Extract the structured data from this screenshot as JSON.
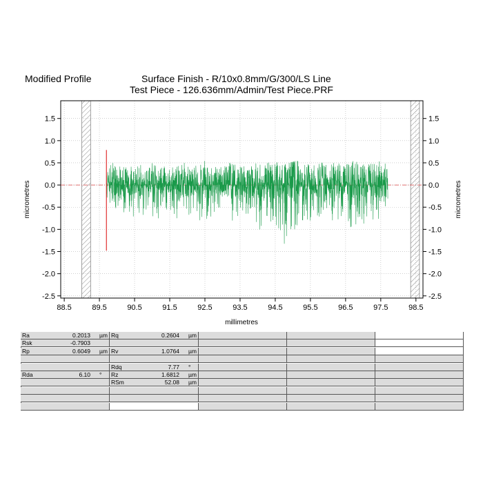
{
  "header": {
    "left_title": "Modified Profile",
    "title_line1": "Surface Finish - R/10x0.8mm/G/300/LS Line",
    "title_line2": "Test Piece - 126.636mm/Admin/Test Piece.PRF"
  },
  "colors": {
    "profile": "#1a9a4a",
    "reference_line": "#d94040",
    "start_marker": "#e03030",
    "grid": "#b0b0b0",
    "table_fill": "#dcdcdc"
  },
  "chart_data": {
    "type": "line",
    "title": "Surface Finish - R/10x0.8mm/G/300/LS Line",
    "subtitle": "Test Piece - 126.636mm/Admin/Test Piece.PRF",
    "xlabel": "millimetres",
    "ylabel": "micrometres",
    "ylabel_right": "micrometres",
    "xlim": [
      88.4,
      98.7
    ],
    "ylim": [
      -2.55,
      1.9
    ],
    "x_ticks": [
      88.5,
      89.5,
      90.5,
      91.5,
      92.5,
      93.5,
      94.5,
      95.5,
      96.5,
      97.5,
      98.5
    ],
    "x_tick_labels": [
      "88.5",
      "89.5",
      "90.5",
      "91.5",
      "92.5",
      "93.5",
      "94.5",
      "95.5",
      "96.5",
      "97.5",
      "98.5"
    ],
    "y_ticks": [
      1.5,
      1.0,
      0.5,
      0.0,
      -0.5,
      -1.0,
      -1.5,
      -2.0,
      -2.5
    ],
    "y_tick_labels": [
      "1.5",
      "1.0",
      "0.5",
      "0.0",
      "-0.5",
      "-1.0",
      "-1.5",
      "-2.0",
      "-2.5"
    ],
    "grid": true,
    "reference_line_y": 0.0,
    "excluded_regions": [
      [
        89.0,
        89.25
      ],
      [
        98.35,
        98.6
      ]
    ],
    "start_marker": {
      "x": 89.7,
      "y_min": -1.48,
      "y_max": 0.79
    },
    "series": [
      {
        "x": [
          89.7,
          89.9,
          90.1,
          90.3,
          90.5,
          90.7,
          90.9,
          91.1,
          91.3,
          91.5,
          91.7,
          91.9,
          92.1,
          92.3,
          92.5,
          92.7,
          92.9,
          93.1,
          93.3,
          93.5,
          93.7,
          93.9,
          94.1,
          94.3,
          94.5,
          94.7,
          94.9,
          95.1,
          95.3,
          95.5,
          95.7,
          95.9,
          96.1,
          96.3,
          96.5,
          96.7,
          96.9,
          97.1,
          97.3,
          97.5,
          97.7
        ],
        "y_max": [
          0.4,
          0.55,
          0.5,
          0.45,
          0.4,
          0.5,
          0.45,
          0.55,
          0.5,
          0.4,
          0.45,
          0.55,
          0.5,
          0.45,
          0.6,
          0.5,
          0.45,
          0.55,
          0.5,
          0.45,
          0.55,
          0.5,
          0.45,
          0.5,
          0.55,
          0.45,
          0.5,
          0.55,
          0.5,
          0.45,
          0.5,
          0.55,
          0.5,
          0.5,
          0.45,
          0.55,
          0.5,
          0.45,
          0.5,
          0.55,
          0.45
        ],
        "y_min": [
          -0.35,
          -0.7,
          -0.6,
          -0.65,
          -0.75,
          -0.8,
          -0.6,
          -0.85,
          -0.7,
          -0.65,
          -0.8,
          -0.75,
          -0.7,
          -0.85,
          -0.8,
          -0.75,
          -0.7,
          -0.8,
          -0.85,
          -0.75,
          -0.7,
          -0.8,
          -1.15,
          -0.85,
          -0.8,
          -1.4,
          -1.5,
          -1.25,
          -0.9,
          -0.85,
          -0.8,
          -0.75,
          -0.8,
          -0.85,
          -0.75,
          -1.3,
          -0.85,
          -0.9,
          -0.8,
          -0.75,
          -0.85
        ]
      }
    ]
  },
  "parameters": {
    "rows": [
      {
        "c1": {
          "label": "Ra",
          "value": "0.2013",
          "unit": "µm"
        },
        "c2": {
          "label": "Rq",
          "value": "0.2604",
          "unit": "µm"
        }
      },
      {
        "c1": {
          "label": "Rsk",
          "value": "-0.7903",
          "unit": ""
        },
        "c2": {
          "label": "",
          "value": "",
          "unit": ""
        }
      },
      {
        "c1": {
          "label": "Rp",
          "value": "0.6049",
          "unit": "µm"
        },
        "c2": {
          "label": "Rv",
          "value": "1.0764",
          "unit": "µm"
        }
      },
      {
        "c1": {
          "label": "",
          "value": "",
          "unit": ""
        },
        "c2": {
          "label": "",
          "value": "",
          "unit": ""
        }
      },
      {
        "c1": {
          "label": "",
          "value": "",
          "unit": ""
        },
        "c2": {
          "label": "Rdq",
          "value": "7.77",
          "unit": "°"
        }
      },
      {
        "c1": {
          "label": "Rda",
          "value": "6.10",
          "unit": "°"
        },
        "c2": {
          "label": "Rz",
          "value": "1.6812",
          "unit": "µm"
        }
      },
      {
        "c1": {
          "label": "",
          "value": "",
          "unit": ""
        },
        "c2": {
          "label": "RSm",
          "value": "52.08",
          "unit": "µm"
        }
      },
      {
        "c1": {
          "label": "",
          "value": "",
          "unit": ""
        },
        "c2": {
          "label": "",
          "value": "",
          "unit": ""
        }
      },
      {
        "c1": {
          "label": "",
          "value": "",
          "unit": ""
        },
        "c2": {
          "label": "",
          "value": "",
          "unit": ""
        }
      },
      {
        "c1": {
          "label": "",
          "value": "",
          "unit": ""
        },
        "c2": {
          "label": "",
          "value": "",
          "unit": ""
        }
      }
    ]
  }
}
